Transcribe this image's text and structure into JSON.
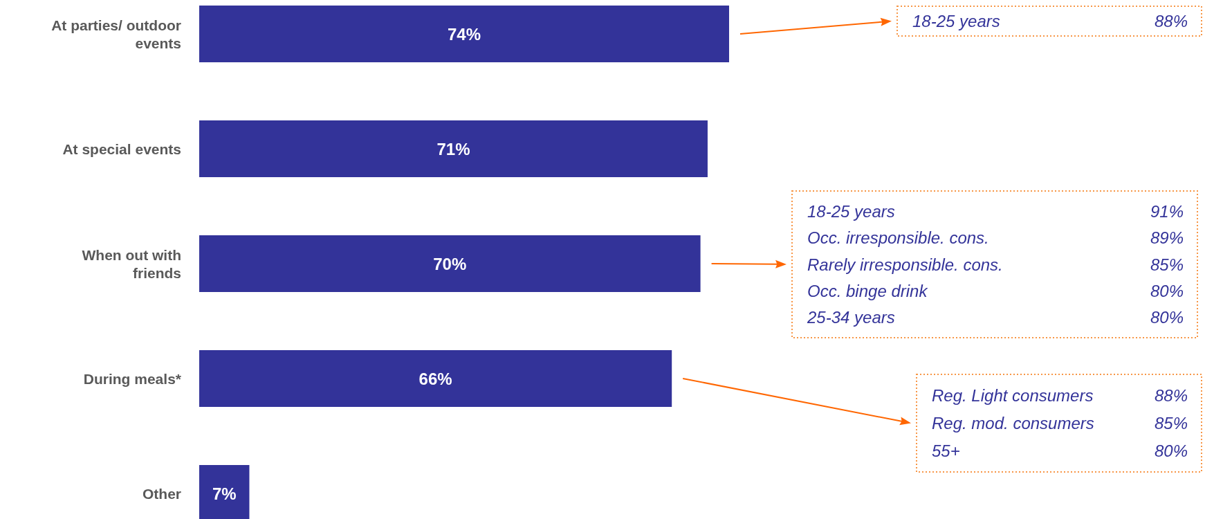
{
  "chart_data": {
    "type": "bar",
    "orientation": "horizontal",
    "categories": [
      "At parties/ outdoor events",
      "At special events",
      "When out with friends",
      "During meals*",
      "Other"
    ],
    "values": [
      74,
      71,
      70,
      66,
      7
    ],
    "color": "#333399",
    "value_labels": [
      "74%",
      "71%",
      "70%",
      "66%",
      "7%"
    ],
    "annotations": [
      "18-25 years",
      "88%",
      "18-25 years",
      "91%",
      "Occ. irresponsible. cons.",
      "89%",
      "Rarely irresponsible. cons.",
      "85%",
      "Occ. binge drink",
      "80%",
      "25-34 years",
      "80%",
      "Reg. Light consumers",
      "88%",
      "Reg. mod. consumers",
      "85%",
      "55+",
      "80%"
    ]
  }
}
